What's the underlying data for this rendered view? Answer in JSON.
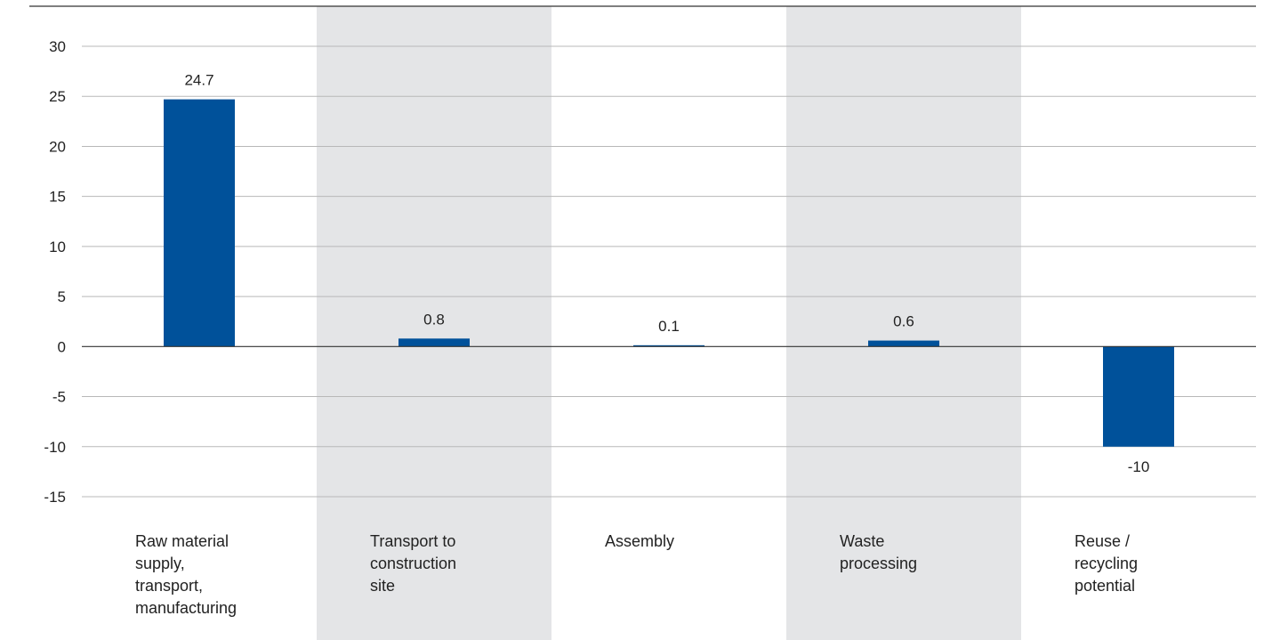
{
  "chart_data": {
    "type": "bar",
    "title": "",
    "xlabel": "",
    "ylabel": "",
    "categories": [
      "Raw material supply, transport, manufacturing",
      "Transport to construction site",
      "Assembly",
      "Waste processing",
      "Reuse / recycling potential"
    ],
    "category_lines": [
      [
        "Raw material",
        "supply,",
        "transport,",
        "manufacturing"
      ],
      [
        "Transport to",
        "construction",
        "site"
      ],
      [
        "Assembly"
      ],
      [
        "Waste",
        "processing"
      ],
      [
        "Reuse /",
        "recycling",
        "potential"
      ]
    ],
    "values": [
      24.7,
      0.8,
      0.1,
      0.6,
      -10
    ],
    "value_labels": [
      "24.7",
      "0.8",
      "0.1",
      "0.6",
      "-10"
    ],
    "ylim": [
      -15,
      30
    ],
    "yticks": [
      30,
      25,
      20,
      15,
      10,
      5,
      0,
      -5,
      -10,
      -15
    ],
    "grid": true,
    "legend": "none",
    "bar_color": "#00519a",
    "band_color": "#e4e5e7",
    "shaded_categories": [
      1,
      3
    ]
  }
}
